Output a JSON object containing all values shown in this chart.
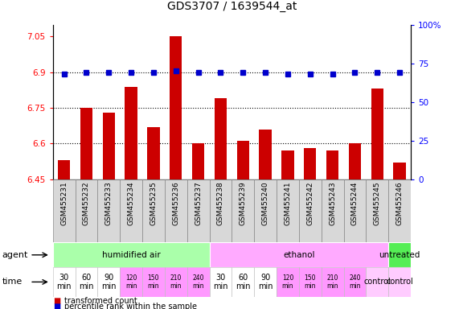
{
  "title": "GDS3707 / 1639544_at",
  "samples": [
    "GSM455231",
    "GSM455232",
    "GSM455233",
    "GSM455234",
    "GSM455235",
    "GSM455236",
    "GSM455237",
    "GSM455238",
    "GSM455239",
    "GSM455240",
    "GSM455241",
    "GSM455242",
    "GSM455243",
    "GSM455244",
    "GSM455245",
    "GSM455246"
  ],
  "bar_values": [
    6.53,
    6.75,
    6.73,
    6.84,
    6.67,
    7.05,
    6.6,
    6.79,
    6.61,
    6.66,
    6.57,
    6.58,
    6.57,
    6.6,
    6.83,
    6.52
  ],
  "percentile_values": [
    68,
    69,
    69,
    69,
    69,
    70,
    69,
    69,
    69,
    69,
    68,
    68,
    68,
    69,
    69,
    69
  ],
  "ymin": 6.45,
  "ymax": 7.1,
  "yticks": [
    6.45,
    6.6,
    6.75,
    6.9,
    7.05
  ],
  "ytick_labels": [
    "6.45",
    "6.6",
    "6.75",
    "6.9",
    "7.05"
  ],
  "y2min": 0,
  "y2max": 100,
  "y2ticks": [
    0,
    25,
    50,
    75,
    100
  ],
  "y2tick_labels": [
    "0",
    "25",
    "50",
    "75",
    "100%"
  ],
  "bar_color": "#cc0000",
  "percentile_color": "#0000cc",
  "bar_width": 0.55,
  "agent_groups": [
    {
      "label": "humidified air",
      "start": 0,
      "end": 7,
      "color": "#aaffaa"
    },
    {
      "label": "ethanol",
      "start": 7,
      "end": 15,
      "color": "#ffaaff"
    },
    {
      "label": "untreated",
      "start": 15,
      "end": 16,
      "color": "#55ee55"
    }
  ],
  "time_labels_short": [
    "30\nmin",
    "60\nmin",
    "90\nmin",
    "120\nmin",
    "150\nmin",
    "210\nmin",
    "240\nmin",
    "30\nmin",
    "60\nmin",
    "90\nmin",
    "120\nmin",
    "150\nmin",
    "210\nmin",
    "240\nmin",
    "control"
  ],
  "time_colors": [
    "#ffffff",
    "#ffffff",
    "#ffffff",
    "#ff99ff",
    "#ff99ff",
    "#ff99ff",
    "#ff99ff",
    "#ffffff",
    "#ffffff",
    "#ffffff",
    "#ff99ff",
    "#ff99ff",
    "#ff99ff",
    "#ff99ff",
    "#ffccff"
  ],
  "time_small_font": [
    false,
    false,
    false,
    true,
    true,
    true,
    true,
    false,
    false,
    false,
    true,
    true,
    true,
    true,
    false
  ],
  "legend_bar_label": "transformed count",
  "legend_pct_label": "percentile rank within the sample",
  "dotted_lines": [
    6.6,
    6.75,
    6.9
  ],
  "label_agent": "agent",
  "label_time": "time",
  "sample_bg_color": "#d8d8d8",
  "sample_border_color": "#888888"
}
